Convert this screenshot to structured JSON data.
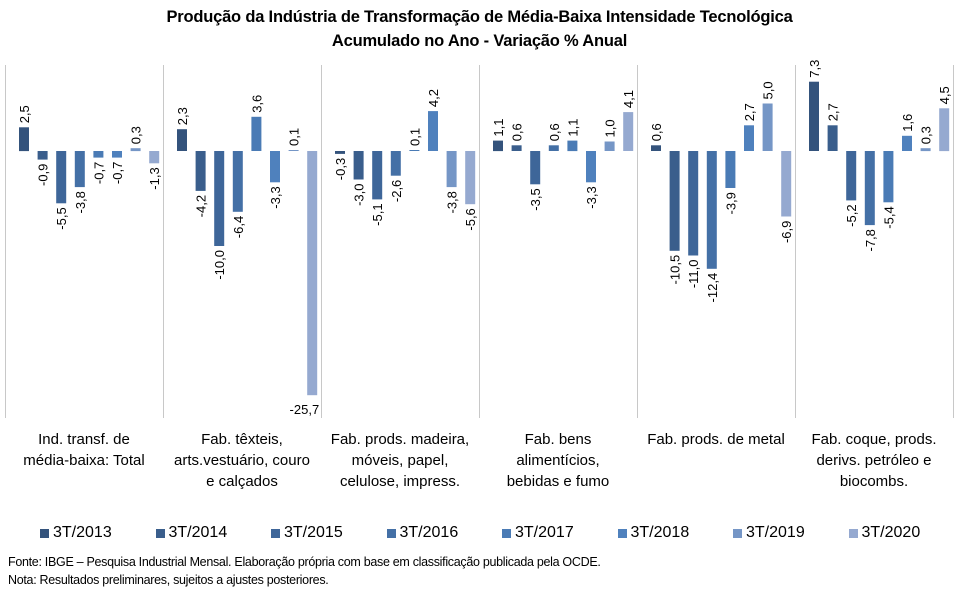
{
  "chart_data": {
    "type": "bar",
    "title": "Produção da Indústria de Transformação de Média-Baixa Intensidade Tecnológica",
    "subtitle": "Acumulado no Ano - Variação % Anual",
    "xlabel": "",
    "ylabel": "",
    "ylim": [
      -28,
      9
    ],
    "grid": false,
    "legend_position": "bottom",
    "categories": [
      "Ind. transf. de média-baixa: Total",
      "Fab. têxteis, arts.vestuário, couro e calçados",
      "Fab. prods. madeira, móveis, papel, celulose, impress.",
      "Fab. bens alimentícios, bebidas e fumo",
      "Fab. prods. de metal",
      "Fab. coque, prods. derivs. petróleo e biocombs."
    ],
    "category_lines": [
      [
        "Ind. transf. de",
        "média-baixa: Total"
      ],
      [
        "Fab. têxteis,",
        "arts.vestuário, couro",
        "e calçados"
      ],
      [
        "Fab. prods. madeira,",
        "móveis, papel,",
        "celulose, impress."
      ],
      [
        "Fab. bens",
        "alimentícios,",
        "bebidas e fumo"
      ],
      [
        "Fab. prods. de metal"
      ],
      [
        "Fab. coque, prods.",
        "derivs. petróleo e",
        "biocombs."
      ]
    ],
    "series": [
      {
        "name": "3T/2013",
        "color": "#34537c",
        "values": [
          2.5,
          2.3,
          -0.3,
          1.1,
          0.6,
          7.3
        ]
      },
      {
        "name": "3T/2014",
        "color": "#3a5e8c",
        "values": [
          -0.9,
          -4.2,
          -3.0,
          0.6,
          -10.5,
          2.7
        ]
      },
      {
        "name": "3T/2015",
        "color": "#3e6699",
        "values": [
          -5.5,
          -10.0,
          -5.1,
          -3.5,
          -11.0,
          -5.2
        ]
      },
      {
        "name": "3T/2016",
        "color": "#4470a6",
        "values": [
          -3.8,
          -6.4,
          -2.6,
          0.6,
          -12.4,
          -7.8
        ]
      },
      {
        "name": "3T/2017",
        "color": "#4a7bb5",
        "values": [
          -0.7,
          3.6,
          0.1,
          1.1,
          -3.9,
          -5.4
        ]
      },
      {
        "name": "3T/2018",
        "color": "#4f81bd",
        "values": [
          -0.7,
          -3.3,
          4.2,
          -3.3,
          2.7,
          1.6
        ]
      },
      {
        "name": "3T/2019",
        "color": "#7596c6",
        "values": [
          0.3,
          0.1,
          -3.8,
          1.0,
          5.0,
          0.3
        ]
      },
      {
        "name": "3T/2020",
        "color": "#95a9d0",
        "values": [
          -1.3,
          -25.7,
          -5.6,
          4.1,
          -6.9,
          4.5
        ]
      }
    ],
    "data_labels": [
      [
        "2,5",
        "2,3",
        "-0,3",
        "1,1",
        "0,6",
        "7,3"
      ],
      [
        "-0,9",
        "-4,2",
        "-3,0",
        "0,6",
        "-10,5",
        "2,7"
      ],
      [
        "-5,5",
        "-10,0",
        "-5,1",
        "-3,5",
        "-11,0",
        "-5,2"
      ],
      [
        "-3,8",
        "-6,4",
        "-2,6",
        "0,6",
        "-12,4",
        "-7,8"
      ],
      [
        "-0,7",
        "3,6",
        "0,1",
        "1,1",
        "-3,9",
        "-5,4"
      ],
      [
        "-0,7",
        "-3,3",
        "4,2",
        "-3,3",
        "2,7",
        "1,6"
      ],
      [
        "0,3",
        "0,1",
        "-3,8",
        "1,0",
        "5,0",
        "0,3"
      ],
      [
        "-1,3",
        "-25,7",
        "-5,6",
        "4,1",
        "-6,9",
        "4,5"
      ]
    ]
  },
  "notes": {
    "source": "Fonte: IBGE – Pesquisa Industrial Mensal. Elaboração própria com base em classificação publicada pela OCDE.",
    "note": "Nota: Resultados preliminares, sujeitos a ajustes posteriores."
  }
}
